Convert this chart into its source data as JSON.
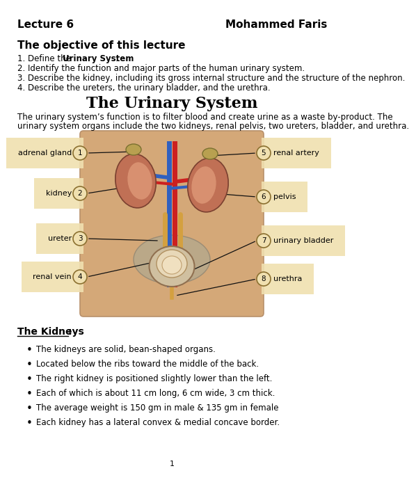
{
  "header_left": "Lecture 6",
  "header_right": "Mohammed Faris",
  "section1_title": "The objective of this lecture",
  "obj1_pre": "1. Define the ",
  "obj1_bold": "Urinary System",
  "obj1_post": ".",
  "obj2": "2. Identify the function and major parts of the human urinary system.",
  "obj3": "3. Describe the kidney, including its gross internal structure and the structure of the nephron.",
  "obj4": "4. Describe the ureters, the urinary bladder, and the urethra.",
  "section2_title": "The Urinary System",
  "body_line1": "The urinary system’s function is to filter blood and create urine as a waste by-product. The",
  "body_line2": "urinary system organs include the two kidneys, renal pelvis, two ureters, bladder, and urethra.",
  "labels_left": [
    "adrenal gland",
    "kidney",
    "ureter",
    "renal vein"
  ],
  "labels_left_nums": [
    "1",
    "2",
    "3",
    "4"
  ],
  "labels_right": [
    "renal artery",
    "pelvis",
    "urinary bladder",
    "urethra"
  ],
  "labels_right_nums": [
    "5",
    "6",
    "7",
    "8"
  ],
  "section3_title": "The Kidneys",
  "kidneys_bullets": [
    "The kidneys are solid, bean-shaped organs.",
    "Located below the ribs toward the middle of the back.",
    "The right kidney is positioned slightly lower than the left.",
    "Each of which is about 11 cm long, 6 cm wide, 3 cm thick.",
    "The average weight is 150 gm in male & 135 gm in female",
    "Each kidney has a lateral convex & medial concave border."
  ],
  "bg_color": "#ffffff",
  "text_color": "#000000",
  "label_bg": "#f0e0b0",
  "circle_edge": "#8b7030",
  "torso_color": "#d4a878",
  "torso_edge": "#b8906a",
  "kidney_color": "#c07055",
  "kidney_inner": "#d89070",
  "adrenal_color": "#b8a050",
  "vessel_blue": "#3060c0",
  "vessel_red": "#cc2020",
  "ureter_color": "#d4a040",
  "bladder_color": "#c8b890",
  "pelvis_color": "#b0a890",
  "page_number": "1"
}
